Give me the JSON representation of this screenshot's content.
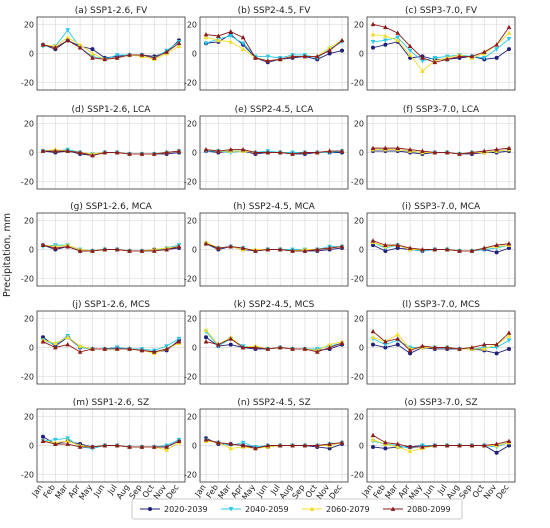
{
  "figure": {
    "ylabel": "Precipitation, mm",
    "months": [
      "Jan",
      "Feb",
      "Mar",
      "Apr",
      "May",
      "Jun",
      "Jul",
      "Aug",
      "Sep",
      "Oct",
      "Nov",
      "Dec"
    ],
    "yticks": [
      -20,
      0,
      20
    ],
    "ylim": [
      -25,
      25
    ],
    "legend": [
      {
        "name": "2020-2039",
        "color": "#1f1f7a",
        "marker": "circle"
      },
      {
        "name": "2040-2059",
        "color": "#29c8e8",
        "marker": "triangle-down"
      },
      {
        "name": "2060-2079",
        "color": "#f2de2a",
        "marker": "triangle-up"
      },
      {
        "name": "2080-2099",
        "color": "#8b1a1a",
        "marker": "triangle-up"
      }
    ]
  },
  "chart_data": [
    {
      "type": "line",
      "title": "(a) SSP1-2.6, FV",
      "series": [
        {
          "name": "2020-2039",
          "values": [
            6,
            3,
            9,
            5,
            3,
            -3,
            -2,
            -1,
            -1,
            -2,
            1,
            9
          ]
        },
        {
          "name": "2040-2059",
          "values": [
            5,
            5,
            16,
            4,
            -2,
            -4,
            -1,
            -1,
            -1,
            -3,
            2,
            8
          ]
        },
        {
          "name": "2060-2079",
          "values": [
            6,
            5,
            11,
            6,
            0,
            -4,
            -3,
            -1,
            -2,
            -4,
            0,
            5
          ]
        },
        {
          "name": "2080-2099",
          "values": [
            6,
            4,
            9,
            4,
            -3,
            -4,
            -3,
            -1,
            -1,
            -3,
            1,
            7
          ]
        }
      ]
    },
    {
      "type": "line",
      "title": "(b) SSP2-4.5, FV",
      "series": [
        {
          "name": "2020-2039",
          "values": [
            7,
            8,
            13,
            6,
            -3,
            -6,
            -4,
            -3,
            -2,
            -4,
            0,
            2
          ]
        },
        {
          "name": "2040-2059",
          "values": [
            7,
            10,
            12,
            7,
            -2,
            -2,
            -3,
            -1,
            -1,
            -3,
            3,
            8
          ]
        },
        {
          "name": "2060-2079",
          "values": [
            11,
            9,
            8,
            3,
            -3,
            -5,
            -4,
            -2,
            -2,
            -2,
            4,
            9
          ]
        },
        {
          "name": "2080-2099",
          "values": [
            13,
            12,
            15,
            11,
            -3,
            -5,
            -4,
            -2,
            -2,
            -2,
            2,
            9
          ]
        }
      ]
    },
    {
      "type": "line",
      "title": "(c) SSP3-7.0, FV",
      "series": [
        {
          "name": "2020-2039",
          "values": [
            4,
            6,
            8,
            -3,
            -2,
            -4,
            -4,
            -3,
            -2,
            -4,
            -3,
            3
          ]
        },
        {
          "name": "2040-2059",
          "values": [
            8,
            9,
            11,
            2,
            -5,
            -3,
            -2,
            -1,
            -2,
            -3,
            3,
            10
          ]
        },
        {
          "name": "2060-2079",
          "values": [
            13,
            12,
            9,
            -1,
            -12,
            -5,
            -3,
            -1,
            -3,
            0,
            6,
            14
          ]
        },
        {
          "name": "2080-2099",
          "values": [
            20,
            18,
            14,
            5,
            -3,
            -6,
            -4,
            -2,
            -2,
            1,
            6,
            18
          ]
        }
      ]
    },
    {
      "type": "line",
      "title": "(d) SSP1-2.6, LCA",
      "series": [
        {
          "name": "2020-2039",
          "values": [
            1,
            0,
            1,
            -1,
            -2,
            0,
            0,
            -1,
            -1,
            -1,
            -1,
            0
          ]
        },
        {
          "name": "2040-2059",
          "values": [
            1,
            1,
            2,
            0,
            -1,
            0,
            0,
            -1,
            -1,
            -1,
            0,
            1
          ]
        },
        {
          "name": "2060-2079",
          "values": [
            1,
            2,
            1,
            0,
            -1,
            0,
            0,
            -1,
            -1,
            -1,
            0,
            1
          ]
        },
        {
          "name": "2080-2099",
          "values": [
            1,
            1,
            1,
            0,
            -2,
            0,
            0,
            -1,
            -1,
            -1,
            0,
            1
          ]
        }
      ]
    },
    {
      "type": "line",
      "title": "(e) SSP2-4.5, LCA",
      "series": [
        {
          "name": "2020-2039",
          "values": [
            1,
            0,
            1,
            1,
            -1,
            0,
            0,
            -1,
            -1,
            0,
            0,
            0
          ]
        },
        {
          "name": "2040-2059",
          "values": [
            1,
            1,
            0,
            1,
            0,
            1,
            0,
            0,
            0,
            0,
            0,
            1
          ]
        },
        {
          "name": "2060-2079",
          "values": [
            2,
            1,
            1,
            1,
            0,
            0,
            0,
            -1,
            0,
            0,
            1,
            1
          ]
        },
        {
          "name": "2080-2099",
          "values": [
            2,
            1,
            2,
            2,
            0,
            0,
            0,
            -1,
            0,
            0,
            1,
            1
          ]
        }
      ]
    },
    {
      "type": "line",
      "title": "(f) SSP3-7.0, LCA",
      "series": [
        {
          "name": "2020-2039",
          "values": [
            1,
            1,
            1,
            0,
            -1,
            0,
            0,
            -1,
            -1,
            0,
            0,
            1
          ]
        },
        {
          "name": "2040-2059",
          "values": [
            2,
            2,
            2,
            1,
            0,
            0,
            0,
            -1,
            0,
            0,
            1,
            2
          ]
        },
        {
          "name": "2060-2079",
          "values": [
            2,
            2,
            2,
            1,
            0,
            0,
            0,
            -1,
            0,
            0,
            1,
            2
          ]
        },
        {
          "name": "2080-2099",
          "values": [
            3,
            3,
            3,
            2,
            1,
            0,
            0,
            -1,
            0,
            1,
            2,
            3
          ]
        }
      ]
    },
    {
      "type": "line",
      "title": "(g) SSP1-2.6, MCA",
      "series": [
        {
          "name": "2020-2039",
          "values": [
            3,
            0,
            2,
            -1,
            -1,
            0,
            0,
            -1,
            -1,
            0,
            0,
            1
          ]
        },
        {
          "name": "2040-2059",
          "values": [
            2,
            3,
            3,
            0,
            -1,
            0,
            0,
            -1,
            -1,
            -1,
            1,
            3
          ]
        },
        {
          "name": "2060-2079",
          "values": [
            3,
            2,
            3,
            0,
            -1,
            0,
            0,
            -1,
            -1,
            0,
            1,
            2
          ]
        },
        {
          "name": "2080-2099",
          "values": [
            3,
            1,
            2,
            -1,
            -1,
            0,
            0,
            -1,
            -1,
            -1,
            0,
            2
          ]
        }
      ]
    },
    {
      "type": "line",
      "title": "(h) SSP2-4.5, MCA",
      "series": [
        {
          "name": "2020-2039",
          "values": [
            4,
            0,
            2,
            0,
            -1,
            0,
            0,
            -1,
            -1,
            -1,
            0,
            1
          ]
        },
        {
          "name": "2040-2059",
          "values": [
            4,
            1,
            2,
            1,
            -1,
            0,
            0,
            0,
            0,
            0,
            2,
            2
          ]
        },
        {
          "name": "2060-2079",
          "values": [
            5,
            1,
            2,
            0,
            0,
            0,
            0,
            -1,
            0,
            0,
            1,
            2
          ]
        },
        {
          "name": "2080-2099",
          "values": [
            4,
            1,
            2,
            1,
            -1,
            0,
            0,
            -1,
            -1,
            0,
            1,
            2
          ]
        }
      ]
    },
    {
      "type": "line",
      "title": "(i) SSP3-7.0, MCA",
      "series": [
        {
          "name": "2020-2039",
          "values": [
            3,
            -1,
            1,
            0,
            -1,
            0,
            0,
            -1,
            -1,
            0,
            -2,
            1
          ]
        },
        {
          "name": "2040-2059",
          "values": [
            5,
            1,
            3,
            0,
            -1,
            0,
            0,
            -1,
            -1,
            0,
            1,
            3
          ]
        },
        {
          "name": "2060-2079",
          "values": [
            5,
            2,
            3,
            0,
            0,
            0,
            0,
            -1,
            -1,
            1,
            2,
            3
          ]
        },
        {
          "name": "2080-2099",
          "values": [
            6,
            3,
            3,
            1,
            0,
            0,
            0,
            -1,
            -1,
            1,
            3,
            4
          ]
        }
      ]
    },
    {
      "type": "line",
      "title": "(j) SSP1-2.6, MCS",
      "series": [
        {
          "name": "2020-2039",
          "values": [
            7,
            1,
            7,
            0,
            -1,
            -1,
            0,
            -1,
            -2,
            -3,
            -2,
            5
          ]
        },
        {
          "name": "2040-2059",
          "values": [
            5,
            2,
            8,
            0,
            -1,
            -1,
            0,
            -1,
            -1,
            -2,
            1,
            6
          ]
        },
        {
          "name": "2060-2079",
          "values": [
            5,
            3,
            7,
            1,
            -1,
            -1,
            -1,
            -1,
            -2,
            -4,
            -1,
            3
          ]
        },
        {
          "name": "2080-2099",
          "values": [
            4,
            0,
            2,
            -3,
            -1,
            -1,
            -1,
            -1,
            -2,
            -3,
            -1,
            4
          ]
        }
      ]
    },
    {
      "type": "line",
      "title": "(k) SSP2-4.5, MCS",
      "series": [
        {
          "name": "2020-2039",
          "values": [
            7,
            1,
            2,
            0,
            -1,
            -1,
            0,
            -1,
            -1,
            -2,
            -1,
            2
          ]
        },
        {
          "name": "2040-2059",
          "values": [
            11,
            1,
            6,
            1,
            0,
            -1,
            0,
            -1,
            -1,
            -1,
            1,
            3
          ]
        },
        {
          "name": "2060-2079",
          "values": [
            12,
            2,
            7,
            0,
            1,
            -1,
            0,
            -1,
            -1,
            -2,
            2,
            4
          ]
        },
        {
          "name": "2080-2099",
          "values": [
            4,
            2,
            6,
            0,
            0,
            -1,
            0,
            -1,
            -1,
            -3,
            0,
            3
          ]
        }
      ]
    },
    {
      "type": "line",
      "title": "(l) SSP3-7.0, MCS",
      "series": [
        {
          "name": "2020-2039",
          "values": [
            2,
            0,
            2,
            -4,
            0,
            -1,
            -1,
            -1,
            -1,
            -2,
            -4,
            -1
          ]
        },
        {
          "name": "2040-2059",
          "values": [
            6,
            2,
            5,
            0,
            0,
            0,
            0,
            -1,
            -1,
            0,
            0,
            5
          ]
        },
        {
          "name": "2060-2079",
          "values": [
            7,
            4,
            9,
            -1,
            0,
            0,
            0,
            -1,
            -1,
            -1,
            2,
            8
          ]
        },
        {
          "name": "2080-2099",
          "values": [
            11,
            4,
            6,
            -2,
            1,
            0,
            0,
            -1,
            0,
            2,
            2,
            10
          ]
        }
      ]
    },
    {
      "type": "line",
      "title": "(m) SSP1-2.6, SZ",
      "series": [
        {
          "name": "2020-2039",
          "values": [
            6,
            1,
            3,
            1,
            -1,
            0,
            0,
            -1,
            -1,
            -1,
            -1,
            3
          ]
        },
        {
          "name": "2040-2059",
          "values": [
            3,
            4,
            5,
            -1,
            -2,
            0,
            0,
            -1,
            -1,
            -1,
            0,
            4
          ]
        },
        {
          "name": "2060-2079",
          "values": [
            3,
            2,
            3,
            0,
            -1,
            0,
            0,
            -1,
            -1,
            -1,
            -3,
            2
          ]
        },
        {
          "name": "2080-2099",
          "values": [
            3,
            1,
            1,
            -1,
            -1,
            0,
            0,
            -1,
            -1,
            -1,
            -1,
            3
          ]
        }
      ]
    },
    {
      "type": "line",
      "title": "(n) SSP2-4.5, SZ",
      "series": [
        {
          "name": "2020-2039",
          "values": [
            5,
            1,
            1,
            0,
            -1,
            -1,
            0,
            0,
            0,
            -1,
            -2,
            1
          ]
        },
        {
          "name": "2040-2059",
          "values": [
            4,
            2,
            0,
            2,
            -1,
            0,
            0,
            0,
            0,
            0,
            1,
            2
          ]
        },
        {
          "name": "2060-2079",
          "values": [
            3,
            2,
            -2,
            -1,
            -2,
            -1,
            0,
            0,
            0,
            0,
            0,
            2
          ]
        },
        {
          "name": "2080-2099",
          "values": [
            4,
            2,
            1,
            0,
            -2,
            0,
            0,
            0,
            0,
            0,
            1,
            2
          ]
        }
      ]
    },
    {
      "type": "line",
      "title": "(o) SSP3-7.0, SZ",
      "series": [
        {
          "name": "2020-2039",
          "values": [
            -1,
            -2,
            -1,
            -1,
            0,
            0,
            0,
            0,
            0,
            0,
            -5,
            0
          ]
        },
        {
          "name": "2040-2059",
          "values": [
            3,
            1,
            0,
            -2,
            0,
            0,
            0,
            0,
            0,
            0,
            -1,
            2
          ]
        },
        {
          "name": "2060-2079",
          "values": [
            4,
            1,
            -1,
            -4,
            -2,
            0,
            0,
            0,
            0,
            0,
            0,
            2
          ]
        },
        {
          "name": "2080-2099",
          "values": [
            7,
            2,
            1,
            -1,
            -1,
            0,
            0,
            0,
            0,
            0,
            1,
            3
          ]
        }
      ]
    }
  ]
}
